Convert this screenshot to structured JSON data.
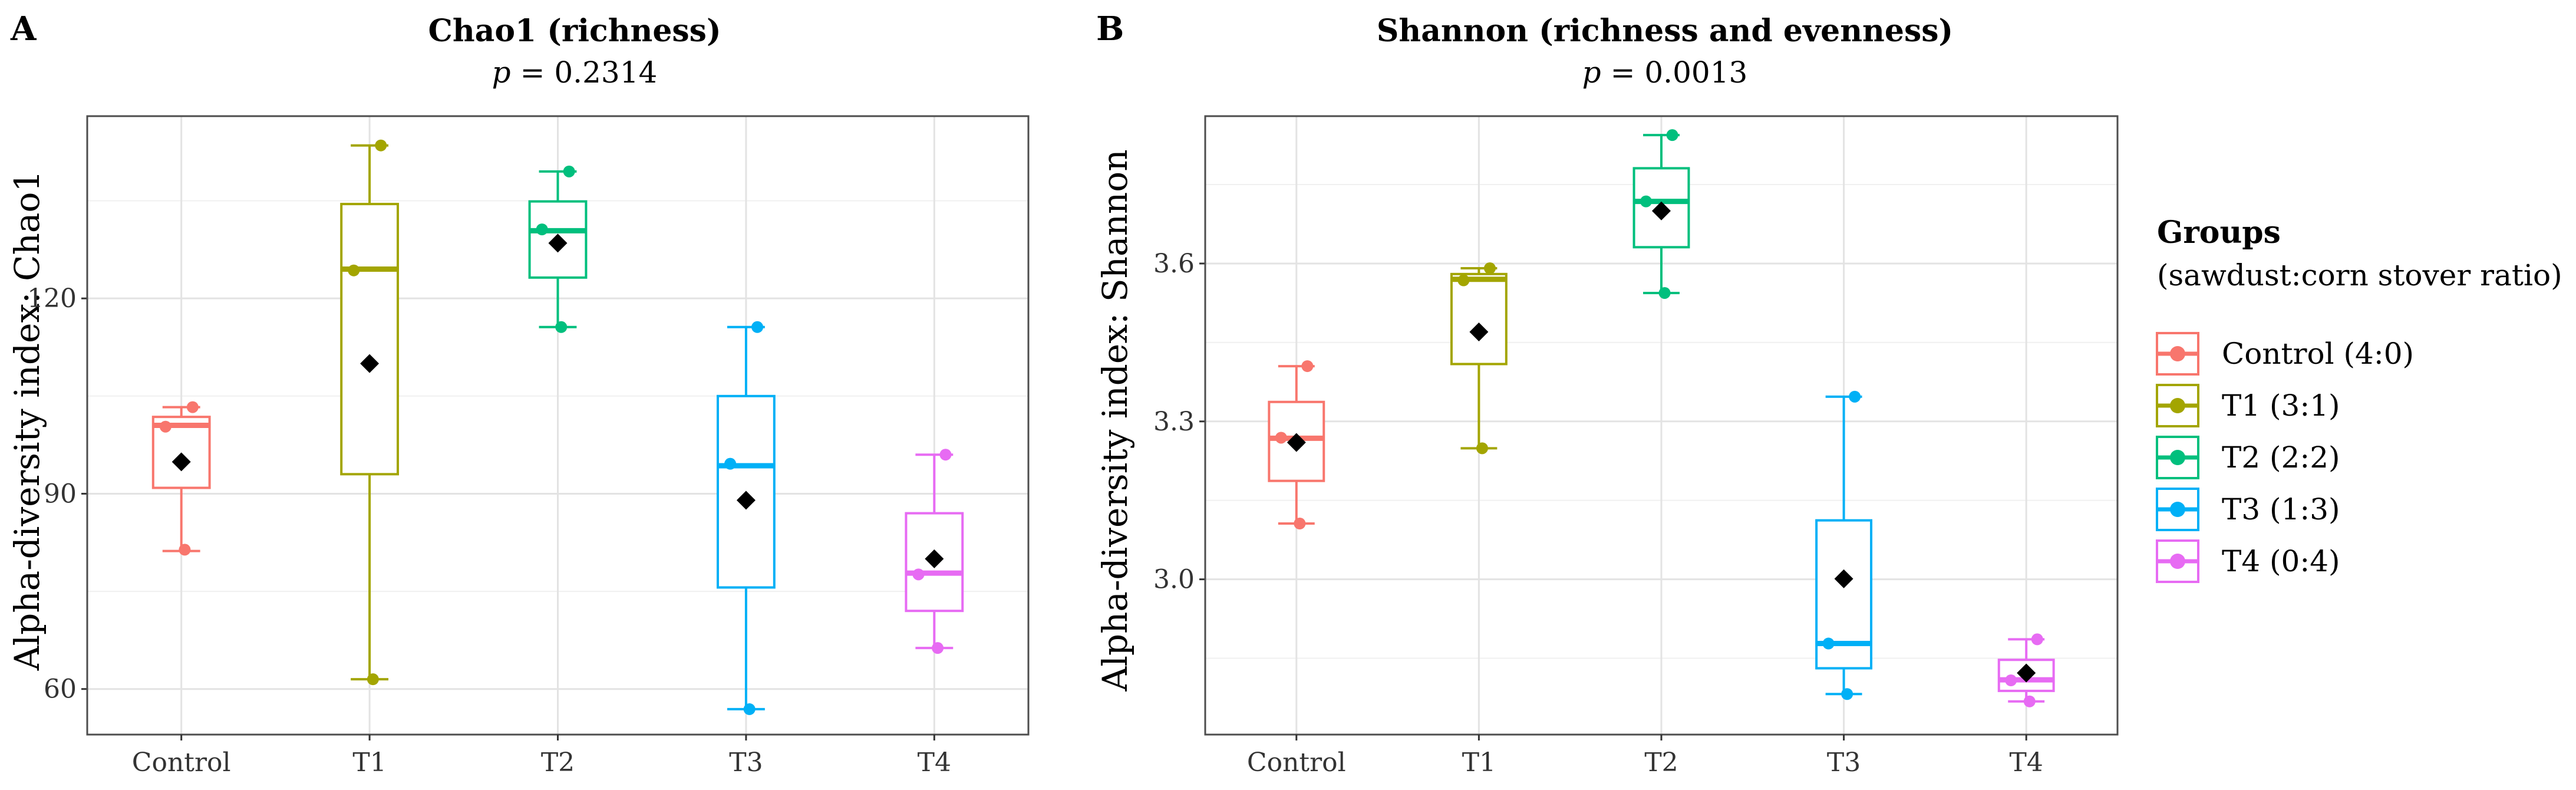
{
  "chart_data": [
    {
      "panel": "A",
      "type": "box",
      "title": "Chao1 (richness)",
      "p_prefix": "p",
      "p_value": "= 0.2314",
      "ylabel": "Alpha-diversity index: Chao1",
      "ylim": [
        53,
        148
      ],
      "yticks": [
        60,
        90,
        120
      ],
      "categories": [
        "Control",
        "T1",
        "T2",
        "T3",
        "T4"
      ],
      "boxes": [
        {
          "group": "Control",
          "min": 81.2,
          "q1": 90.9,
          "median": 100.5,
          "q3": 101.8,
          "max": 103.3,
          "mean": 94.9,
          "points": [
            103.3,
            100.3,
            81.4
          ]
        },
        {
          "group": "T1",
          "min": 61.5,
          "q1": 93.0,
          "median": 124.5,
          "q3": 134.5,
          "max": 143.5,
          "mean": 110.0,
          "points": [
            143.5,
            124.3,
            61.5
          ]
        },
        {
          "group": "T2",
          "min": 115.6,
          "q1": 123.2,
          "median": 130.4,
          "q3": 134.9,
          "max": 139.5,
          "mean": 128.5,
          "points": [
            139.5,
            130.6,
            115.6
          ]
        },
        {
          "group": "T3",
          "min": 56.9,
          "q1": 75.6,
          "median": 94.3,
          "q3": 105.0,
          "max": 115.6,
          "mean": 89.0,
          "points": [
            115.6,
            94.6,
            56.9
          ]
        },
        {
          "group": "T4",
          "min": 66.3,
          "q1": 72.0,
          "median": 77.8,
          "q3": 87.0,
          "max": 96.0,
          "mean": 80.0,
          "points": [
            96.0,
            77.6,
            66.3
          ]
        }
      ]
    },
    {
      "panel": "B",
      "type": "box",
      "title": "Shannon (richness and evenness)",
      "p_prefix": "p",
      "p_value": "= 0.0013",
      "ylabel": "Alpha-diversity index: Shannon",
      "ylim": [
        2.705,
        3.88
      ],
      "yticks": [
        "3.0",
        "3.3",
        "3.6"
      ],
      "categories": [
        "Control",
        "T1",
        "T2",
        "T3",
        "T4"
      ],
      "boxes": [
        {
          "group": "Control",
          "min": 3.106,
          "q1": 3.187,
          "median": 3.268,
          "q3": 3.337,
          "max": 3.405,
          "mean": 3.26,
          "points": [
            3.405,
            3.269,
            3.106
          ]
        },
        {
          "group": "T1",
          "min": 3.249,
          "q1": 3.409,
          "median": 3.57,
          "q3": 3.58,
          "max": 3.591,
          "mean": 3.47,
          "points": [
            3.591,
            3.568,
            3.249
          ]
        },
        {
          "group": "T2",
          "min": 3.544,
          "q1": 3.631,
          "median": 3.718,
          "q3": 3.781,
          "max": 3.844,
          "mean": 3.7,
          "points": [
            3.844,
            3.718,
            3.544
          ]
        },
        {
          "group": "T3",
          "min": 2.782,
          "q1": 2.831,
          "median": 2.878,
          "q3": 3.112,
          "max": 3.347,
          "mean": 3.001,
          "points": [
            3.347,
            2.878,
            2.782
          ]
        },
        {
          "group": "T4",
          "min": 2.768,
          "q1": 2.788,
          "median": 2.809,
          "q3": 2.847,
          "max": 2.886,
          "mean": 2.822,
          "points": [
            2.886,
            2.808,
            2.768
          ]
        }
      ]
    }
  ],
  "legend": {
    "title": "Groups",
    "subtitle": "(sawdust:corn stover ratio)",
    "entries": [
      {
        "label": "Control (4:0)",
        "color": "#F8766D"
      },
      {
        "label": "T1 (3:1)",
        "color": "#A3A500"
      },
      {
        "label": "T2 (2:2)",
        "color": "#00BF7D"
      },
      {
        "label": "T3 (1:3)",
        "color": "#00B0F6"
      },
      {
        "label": "T4 (0:4)",
        "color": "#E76BF3"
      }
    ]
  }
}
